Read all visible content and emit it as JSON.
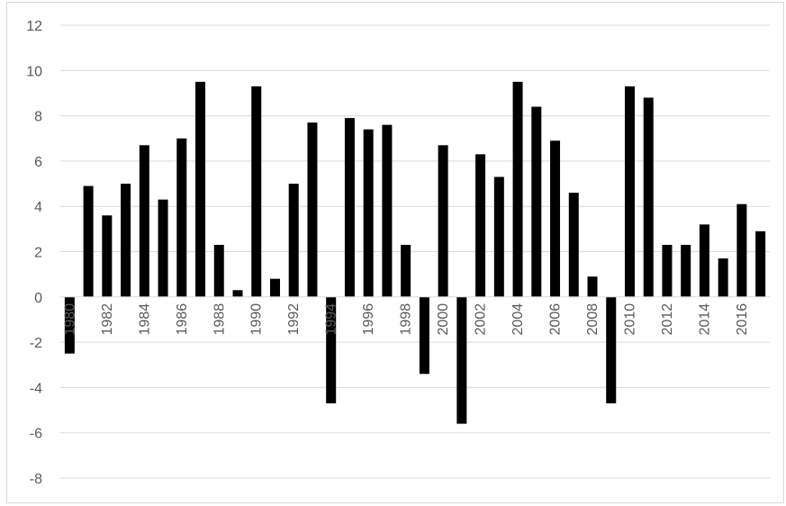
{
  "chart_data": {
    "type": "bar",
    "title": "",
    "xlabel": "",
    "ylabel": "",
    "ylim": [
      -8,
      12
    ],
    "y_ticks": [
      -8,
      -6,
      -4,
      -2,
      0,
      2,
      4,
      6,
      8,
      10,
      12
    ],
    "x_tick_labels": [
      "1980",
      "1982",
      "1984",
      "1986",
      "1988",
      "1990",
      "1992",
      "1994",
      "1996",
      "1998",
      "2000",
      "2002",
      "2004",
      "2006",
      "2008",
      "2010",
      "2012",
      "2014",
      "2016"
    ],
    "grid": true,
    "legend": "none",
    "bar_color": "#000000",
    "grid_color": "#d9d9d9",
    "categories": [
      1980,
      1981,
      1982,
      1983,
      1984,
      1985,
      1986,
      1987,
      1988,
      1989,
      1990,
      1991,
      1992,
      1993,
      1994,
      1995,
      1996,
      1997,
      1998,
      1999,
      2000,
      2001,
      2002,
      2003,
      2004,
      2005,
      2006,
      2007,
      2008,
      2009,
      2010,
      2011,
      2012,
      2013,
      2014,
      2015,
      2016,
      2017
    ],
    "values": [
      -2.5,
      4.9,
      3.6,
      5.0,
      6.7,
      4.3,
      7.0,
      9.5,
      2.3,
      0.3,
      9.3,
      0.8,
      5.0,
      7.7,
      -4.7,
      7.9,
      7.4,
      7.6,
      2.3,
      -3.4,
      6.7,
      -5.6,
      6.3,
      5.3,
      9.5,
      8.4,
      6.9,
      4.6,
      0.9,
      -4.7,
      9.3,
      8.8,
      2.3,
      2.3,
      3.2,
      1.7,
      4.1,
      2.9
    ]
  }
}
